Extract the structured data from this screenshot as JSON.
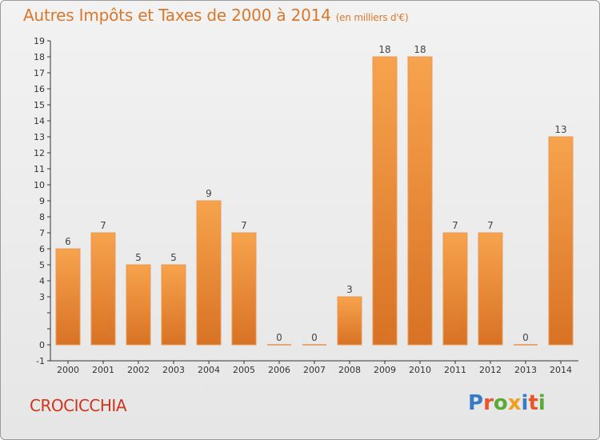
{
  "title": "Autres Impôts et Taxes de 2000 à 2014",
  "unit": "(en milliers d'€)",
  "commune": "CROCICCHIA",
  "logo": {
    "text": "Proxiti",
    "colors": [
      "#3a7bc8",
      "#e8562a",
      "#5aaa3a",
      "#f0a020",
      "#3a7bc8",
      "#e8562a",
      "#5aaa3a"
    ]
  },
  "colors": {
    "bar_light": "#f7a34e",
    "bar_dark": "#d87224",
    "title": "#d9782b",
    "commune": "#d0341c"
  },
  "chart_data": {
    "type": "bar",
    "title": "Autres Impôts et Taxes de 2000 à 2014",
    "subtitle": "(en milliers d'€)",
    "categories": [
      "2000",
      "2001",
      "2002",
      "2003",
      "2004",
      "2005",
      "2006",
      "2007",
      "2008",
      "2009",
      "2010",
      "2011",
      "2012",
      "2013",
      "2014"
    ],
    "values": [
      6,
      7,
      5,
      5,
      9,
      7,
      0,
      0,
      3,
      18,
      18,
      7,
      7,
      0,
      13
    ],
    "ylim": [
      -1,
      19
    ],
    "yticks": [
      -1,
      0,
      1,
      2,
      3,
      4,
      5,
      6,
      7,
      8,
      9,
      10,
      11,
      12,
      13,
      14,
      15,
      16,
      17,
      18,
      19
    ],
    "ytick_labels": [
      "-1",
      "0",
      "",
      "",
      "3",
      "4",
      "5",
      "6",
      "7",
      "8",
      "9",
      "10",
      "11",
      "12",
      "13",
      "14",
      "15",
      "16",
      "17",
      "18",
      "19"
    ],
    "grid": false,
    "legend": "none"
  }
}
